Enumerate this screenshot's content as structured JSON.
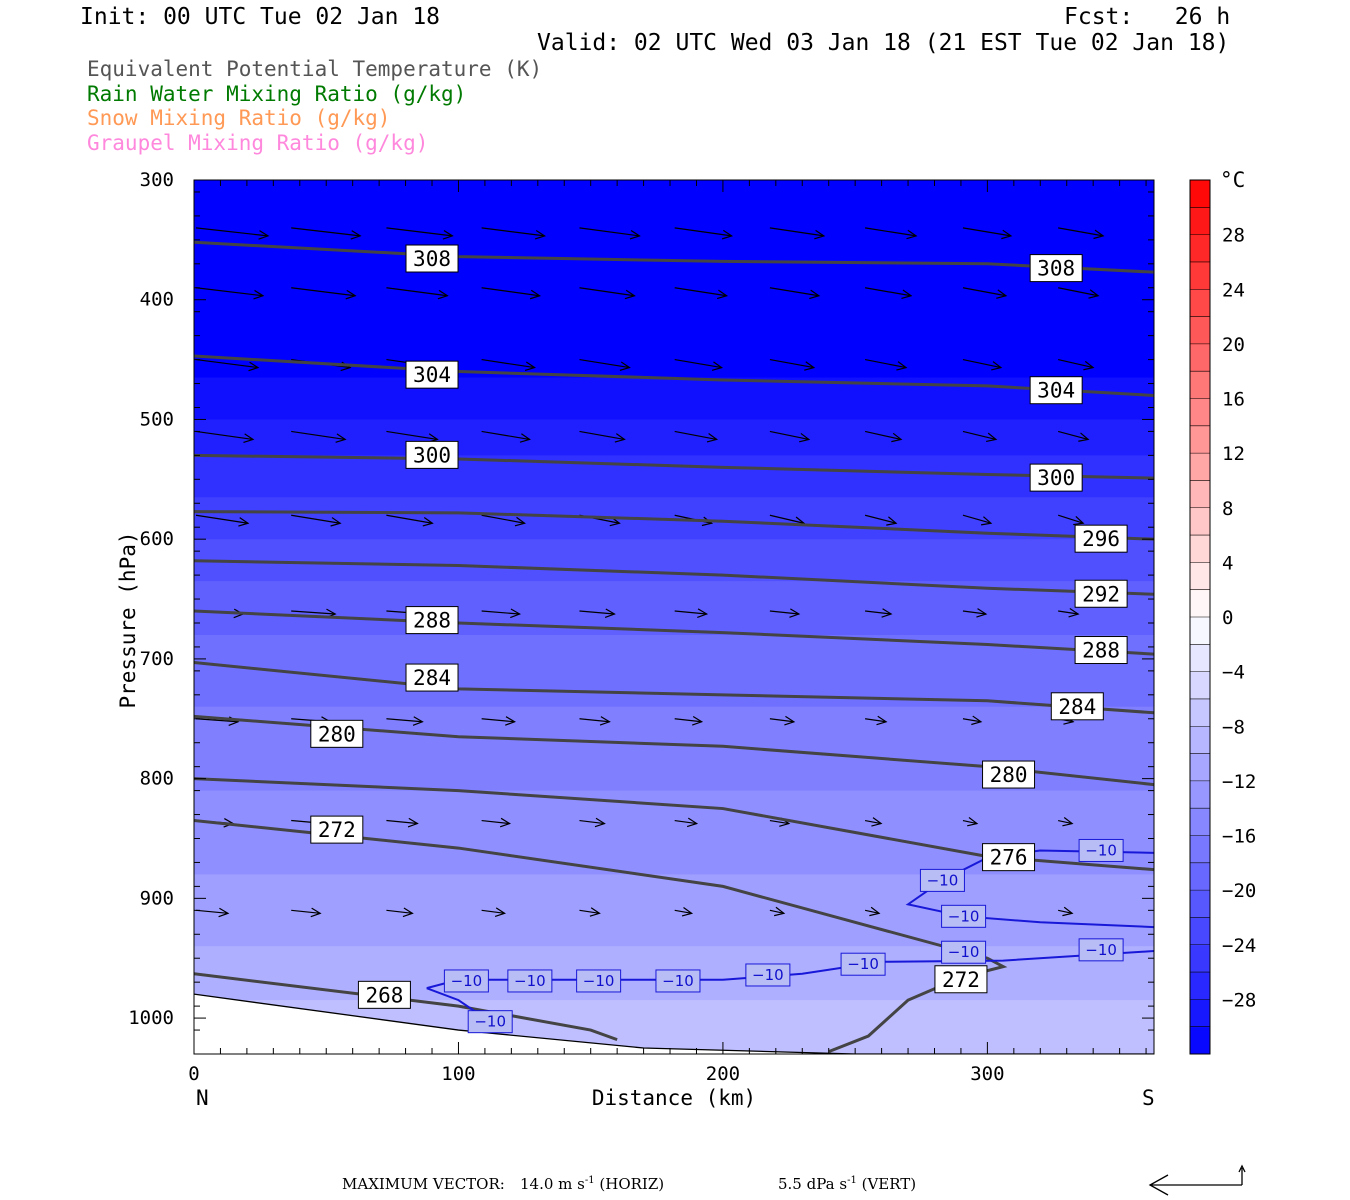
{
  "header": {
    "init": "Init: 00 UTC Tue 02 Jan 18",
    "fcst": "Fcst:   26 h",
    "valid": "Valid: 02 UTC Wed 03 Jan 18 (21 EST Tue 02 Jan 18)"
  },
  "legend": {
    "theta_e": "Equivalent Potential Temperature (K)",
    "rain": "Rain Water Mixing Ratio (g/kg)",
    "snow": "Snow Mixing Ratio (g/kg)",
    "graupel": "Graupel Mixing Ratio (g/kg)",
    "colors": {
      "theta_e": "#555555",
      "rain": "#007a00",
      "snow": "#ff9955",
      "graupel": "#ff88dd"
    }
  },
  "footer": {
    "max_vector_label": "MAXIMUM VECTOR:",
    "horiz": "14.0 m s",
    "horiz_unit": "(HORIZ)",
    "vert": "5.5 dPa s",
    "vert_unit": "(VERT)",
    "exp": "-1"
  },
  "chart_data": {
    "type": "cross-section",
    "xlabel": "Distance (km)",
    "ylabel": "Pressure (hPa)",
    "xlim": [
      0,
      363
    ],
    "ylim": [
      1030,
      300
    ],
    "y_scale": "linear",
    "x_ticks": [
      0,
      100,
      200,
      300
    ],
    "y_ticks": [
      300,
      400,
      500,
      600,
      700,
      800,
      900,
      1000
    ],
    "x_end_labels": {
      "left": "N",
      "right": "S"
    },
    "colorbar": {
      "unit": "°C",
      "levels": [
        -32,
        -30,
        -28,
        -26,
        -24,
        -22,
        -20,
        -18,
        -16,
        -14,
        -12,
        -10,
        -8,
        -6,
        -4,
        -2,
        0,
        2,
        4,
        6,
        8,
        10,
        12,
        14,
        16,
        18,
        20,
        22,
        24,
        26,
        28,
        30,
        32
      ],
      "tick_labels": [
        "28",
        "24",
        "20",
        "16",
        "12",
        "8",
        "4",
        "0",
        "−4",
        "−8",
        "−12",
        "−16",
        "−20",
        "−24",
        "−28"
      ],
      "tick_values": [
        28,
        24,
        20,
        16,
        12,
        8,
        4,
        0,
        -4,
        -8,
        -12,
        -16,
        -20,
        -24,
        -28
      ]
    },
    "temperature_bands": [
      {
        "temp": -32,
        "p_top": 300,
        "p_bot": 465
      },
      {
        "temp": -30,
        "p_top": 465,
        "p_bot": 500
      },
      {
        "temp": -28,
        "p_top": 500,
        "p_bot": 530
      },
      {
        "temp": -26,
        "p_top": 530,
        "p_bot": 565
      },
      {
        "temp": -24,
        "p_top": 565,
        "p_bot": 600
      },
      {
        "temp": -22,
        "p_top": 600,
        "p_bot": 635
      },
      {
        "temp": -20,
        "p_top": 635,
        "p_bot": 680
      },
      {
        "temp": -18,
        "p_top": 680,
        "p_bot": 740
      },
      {
        "temp": -16,
        "p_top": 740,
        "p_bot": 810
      },
      {
        "temp": -14,
        "p_top": 810,
        "p_bot": 880
      },
      {
        "temp": -12,
        "p_top": 880,
        "p_bot": 940
      },
      {
        "temp": -10,
        "p_top": 940,
        "p_bot": 985
      },
      {
        "temp": -8,
        "p_top": 985,
        "p_bot": 1030
      }
    ],
    "theta_e_contours": [
      {
        "value": 308,
        "points": [
          [
            0,
            352
          ],
          [
            100,
            364
          ],
          [
            200,
            368
          ],
          [
            300,
            370
          ],
          [
            363,
            377
          ]
        ],
        "labels": [
          [
            90,
            366
          ],
          [
            326,
            374
          ]
        ]
      },
      {
        "value": 304,
        "points": [
          [
            0,
            447
          ],
          [
            100,
            460
          ],
          [
            200,
            467
          ],
          [
            300,
            472
          ],
          [
            363,
            480
          ]
        ],
        "labels": [
          [
            90,
            463
          ],
          [
            326,
            476
          ]
        ]
      },
      {
        "value": 300,
        "points": [
          [
            0,
            530
          ],
          [
            100,
            533
          ],
          [
            200,
            540
          ],
          [
            300,
            546
          ],
          [
            363,
            549
          ]
        ],
        "labels": [
          [
            90,
            530
          ],
          [
            326,
            549
          ]
        ]
      },
      {
        "value": 296,
        "points": [
          [
            0,
            577
          ],
          [
            100,
            578
          ],
          [
            200,
            585
          ],
          [
            300,
            595
          ],
          [
            363,
            600
          ]
        ],
        "labels": [
          [
            343,
            600
          ]
        ]
      },
      {
        "value": 292,
        "points": [
          [
            0,
            618
          ],
          [
            100,
            622
          ],
          [
            200,
            630
          ],
          [
            300,
            641
          ],
          [
            363,
            646
          ]
        ],
        "labels": [
          [
            343,
            646
          ]
        ]
      },
      {
        "value": 288,
        "points": [
          [
            0,
            660
          ],
          [
            100,
            670
          ],
          [
            200,
            678
          ],
          [
            300,
            688
          ],
          [
            363,
            696
          ]
        ],
        "labels": [
          [
            90,
            668
          ],
          [
            343,
            693
          ]
        ]
      },
      {
        "value": 284,
        "points": [
          [
            0,
            703
          ],
          [
            100,
            725
          ],
          [
            200,
            730
          ],
          [
            300,
            735
          ],
          [
            363,
            745
          ]
        ],
        "labels": [
          [
            90,
            716
          ],
          [
            334,
            740
          ]
        ]
      },
      {
        "value": 280,
        "points": [
          [
            0,
            748
          ],
          [
            100,
            765
          ],
          [
            200,
            773
          ],
          [
            300,
            790
          ],
          [
            363,
            805
          ]
        ],
        "labels": [
          [
            54,
            763
          ],
          [
            308,
            797
          ]
        ]
      },
      {
        "value": 276,
        "points": [
          [
            0,
            800
          ],
          [
            100,
            810
          ],
          [
            200,
            825
          ],
          [
            300,
            865
          ],
          [
            363,
            876
          ]
        ],
        "labels": [
          [
            308,
            866
          ]
        ]
      },
      {
        "value": 272,
        "points": [
          [
            0,
            835
          ],
          [
            100,
            858
          ],
          [
            200,
            890
          ],
          [
            300,
            950
          ],
          [
            306,
            957
          ],
          [
            290,
            966
          ],
          [
            270,
            985
          ],
          [
            255,
            1015
          ],
          [
            240,
            1028
          ]
        ],
        "labels": [
          [
            54,
            843
          ],
          [
            290,
            968
          ]
        ]
      },
      {
        "value": 268,
        "points": [
          [
            0,
            963
          ],
          [
            100,
            990
          ],
          [
            150,
            1010
          ],
          [
            160,
            1018
          ]
        ],
        "labels": [
          [
            72,
            981
          ]
        ]
      }
    ],
    "temp_minus10_contour": {
      "value": -10,
      "label_positions": [
        [
          103,
          969
        ],
        [
          127,
          969
        ],
        [
          153,
          969
        ],
        [
          183,
          969
        ],
        [
          217,
          964
        ],
        [
          253,
          955
        ],
        [
          283,
          885
        ],
        [
          291,
          915
        ],
        [
          291,
          945
        ],
        [
          308,
          867
        ],
        [
          343,
          860
        ],
        [
          343,
          943
        ],
        [
          112,
          1003
        ]
      ]
    },
    "surface_line": [
      [
        0,
        980
      ],
      [
        100,
        1010
      ],
      [
        170,
        1025
      ],
      [
        250,
        1030
      ],
      [
        363,
        1030
      ]
    ]
  }
}
